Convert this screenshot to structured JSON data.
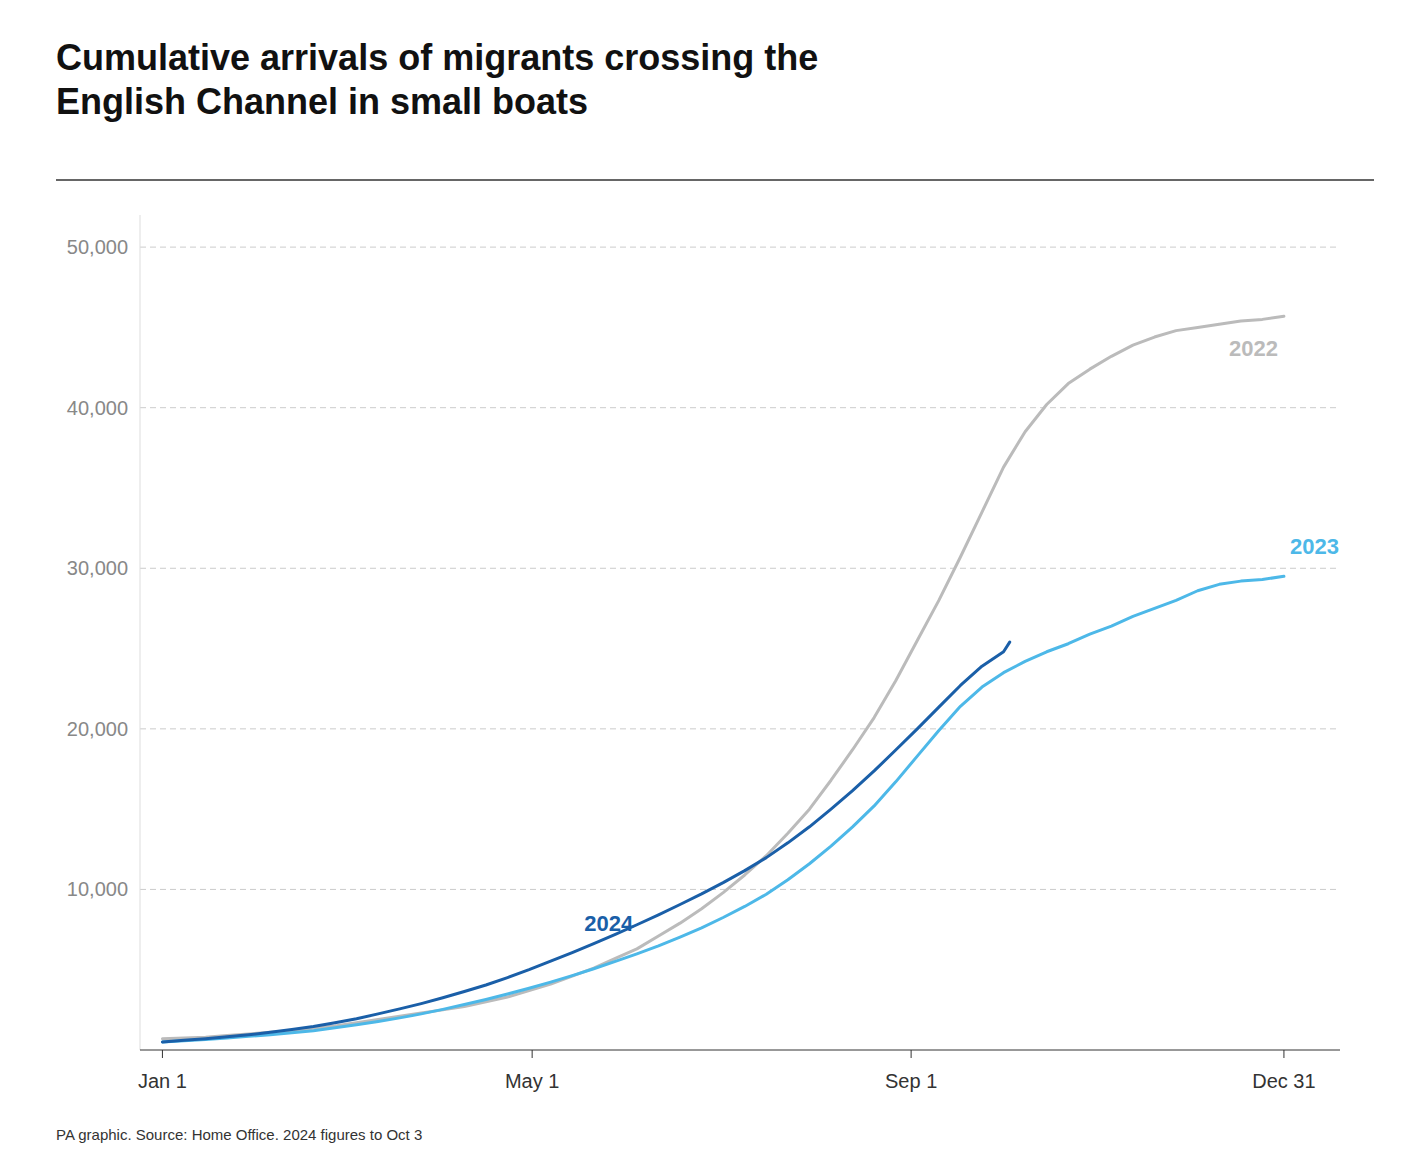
{
  "chart_data": {
    "type": "line",
    "title": "Cumulative arrivals of migrants crossing the\nEnglish Channel in small boats",
    "source": "PA graphic. Source: Home Office. 2024 figures to Oct 3",
    "grid": true,
    "xlim": [
      -6.28,
      383.2
    ],
    "xticks": [
      {
        "value": 1,
        "label": "Jan 1"
      },
      {
        "value": 121,
        "label": "May 1"
      },
      {
        "value": 244,
        "label": "Sep 1"
      },
      {
        "value": 365,
        "label": "Dec 31"
      }
    ],
    "ylim": [
      0,
      52000
    ],
    "yticks": [
      {
        "value": 10000,
        "label": "10,000"
      },
      {
        "value": 20000,
        "label": "20,000"
      },
      {
        "value": 30000,
        "label": "30,000"
      },
      {
        "value": 40000,
        "label": "40,000"
      },
      {
        "value": 50000,
        "label": "50,000"
      }
    ],
    "series": [
      {
        "name": "2022",
        "color": "#bbbbbb",
        "x": [
          1,
          8,
          15,
          22,
          29,
          36,
          43,
          50,
          57,
          64,
          71,
          78,
          85,
          92,
          99,
          106,
          113,
          120,
          127,
          134,
          141,
          148,
          155,
          162,
          169,
          176,
          183,
          190,
          197,
          204,
          211,
          218,
          225,
          232,
          239,
          246,
          253,
          260,
          267,
          274,
          281,
          288,
          295,
          302,
          309,
          316,
          323,
          330,
          337,
          344,
          351,
          358,
          365
        ],
        "values": [
          700,
          750,
          800,
          900,
          1000,
          1100,
          1200,
          1350,
          1500,
          1700,
          1900,
          2100,
          2300,
          2500,
          2700,
          3000,
          3300,
          3700,
          4100,
          4600,
          5100,
          5700,
          6300,
          7100,
          7900,
          8800,
          9800,
          10900,
          12100,
          13500,
          15000,
          16800,
          18700,
          20700,
          23000,
          25500,
          28000,
          30700,
          33500,
          36300,
          38500,
          40200,
          41500,
          42400,
          43200,
          43900,
          44400,
          44800,
          45000,
          45200,
          45400,
          45500,
          45700
        ]
      },
      {
        "name": "2023",
        "color": "#4db8e8",
        "x": [
          1,
          8,
          15,
          22,
          29,
          36,
          43,
          50,
          57,
          64,
          71,
          78,
          85,
          92,
          99,
          106,
          113,
          120,
          127,
          134,
          141,
          148,
          155,
          162,
          169,
          176,
          183,
          190,
          197,
          204,
          211,
          218,
          225,
          232,
          239,
          246,
          253,
          260,
          267,
          274,
          281,
          288,
          295,
          302,
          309,
          316,
          323,
          330,
          337,
          344,
          351,
          358,
          365
        ],
        "values": [
          500,
          580,
          660,
          750,
          850,
          950,
          1070,
          1200,
          1380,
          1570,
          1780,
          2000,
          2250,
          2530,
          2830,
          3150,
          3490,
          3850,
          4230,
          4630,
          5060,
          5520,
          5990,
          6490,
          7030,
          7600,
          8250,
          8940,
          9700,
          10600,
          11600,
          12700,
          13900,
          15200,
          16700,
          18300,
          19900,
          21400,
          22600,
          23500,
          24200,
          24800,
          25300,
          25900,
          26400,
          27000,
          27500,
          28000,
          28600,
          29000,
          29200,
          29300,
          29500
        ]
      },
      {
        "name": "2024",
        "color": "#1a5fa8",
        "x": [
          1,
          8,
          15,
          22,
          29,
          36,
          43,
          50,
          57,
          64,
          71,
          78,
          85,
          92,
          99,
          106,
          113,
          120,
          127,
          134,
          141,
          148,
          155,
          162,
          169,
          176,
          183,
          190,
          197,
          204,
          211,
          218,
          225,
          232,
          239,
          246,
          253,
          260,
          267,
          274,
          276
        ],
        "values": [
          500,
          600,
          700,
          820,
          950,
          1100,
          1270,
          1470,
          1700,
          1950,
          2250,
          2560,
          2890,
          3250,
          3640,
          4050,
          4510,
          5000,
          5530,
          6070,
          6630,
          7200,
          7800,
          8420,
          9060,
          9720,
          10420,
          11170,
          11980,
          12900,
          13900,
          15000,
          16150,
          17380,
          18680,
          20000,
          21350,
          22700,
          23900,
          24800,
          25400
        ]
      }
    ]
  }
}
